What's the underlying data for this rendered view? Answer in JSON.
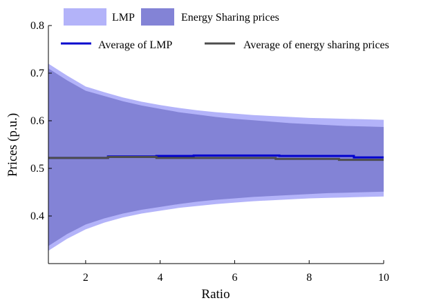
{
  "chart_data": {
    "type": "area",
    "xlabel": "Ratio",
    "ylabel": "Prices (p.u.)",
    "xlim": [
      1,
      10
    ],
    "ylim": [
      0.3,
      0.8
    ],
    "x_ticks": [
      2,
      4,
      6,
      8,
      10
    ],
    "y_ticks": [
      0.4,
      0.5,
      0.6,
      0.7,
      0.8
    ],
    "legend_position": "top",
    "x": [
      1,
      1.5,
      2,
      2.5,
      3,
      3.5,
      4,
      4.5,
      5,
      5.5,
      6,
      6.5,
      7,
      7.5,
      8,
      8.5,
      9,
      9.5,
      10
    ],
    "bands": [
      {
        "name": "LMP",
        "color": "#b3b3f9",
        "upper": [
          0.72,
          0.695,
          0.672,
          0.66,
          0.649,
          0.64,
          0.633,
          0.627,
          0.622,
          0.618,
          0.615,
          0.612,
          0.61,
          0.608,
          0.606,
          0.605,
          0.604,
          0.603,
          0.602
        ],
        "lower": [
          0.327,
          0.352,
          0.372,
          0.386,
          0.397,
          0.405,
          0.411,
          0.417,
          0.421,
          0.425,
          0.428,
          0.431,
          0.433,
          0.435,
          0.437,
          0.438,
          0.439,
          0.44,
          0.441
        ]
      },
      {
        "name": "Energy Sharing prices",
        "color": "#8383d6",
        "upper": [
          0.71,
          0.685,
          0.663,
          0.652,
          0.641,
          0.632,
          0.625,
          0.618,
          0.613,
          0.608,
          0.604,
          0.601,
          0.598,
          0.595,
          0.593,
          0.591,
          0.589,
          0.588,
          0.587
        ],
        "lower": [
          0.337,
          0.362,
          0.382,
          0.395,
          0.405,
          0.413,
          0.419,
          0.425,
          0.43,
          0.434,
          0.437,
          0.44,
          0.442,
          0.444,
          0.446,
          0.448,
          0.449,
          0.45,
          0.451
        ]
      }
    ],
    "series": [
      {
        "name": "Average of LMP",
        "color": "#0000cd",
        "x": [
          1,
          2.6,
          2.6,
          3.9,
          3.9,
          4.9,
          4.9,
          7.2,
          7.2,
          9.2,
          9.2,
          10
        ],
        "values": [
          0.522,
          0.522,
          0.525,
          0.525,
          0.526,
          0.526,
          0.527,
          0.527,
          0.526,
          0.526,
          0.523,
          0.523
        ]
      },
      {
        "name": "Average of energy sharing prices",
        "color": "#4d4d4d",
        "x": [
          1,
          2.6,
          2.6,
          3.9,
          3.9,
          7.1,
          7.1,
          8.8,
          8.8,
          10
        ],
        "values": [
          0.522,
          0.522,
          0.524,
          0.524,
          0.522,
          0.522,
          0.52,
          0.52,
          0.518,
          0.518
        ]
      }
    ]
  }
}
